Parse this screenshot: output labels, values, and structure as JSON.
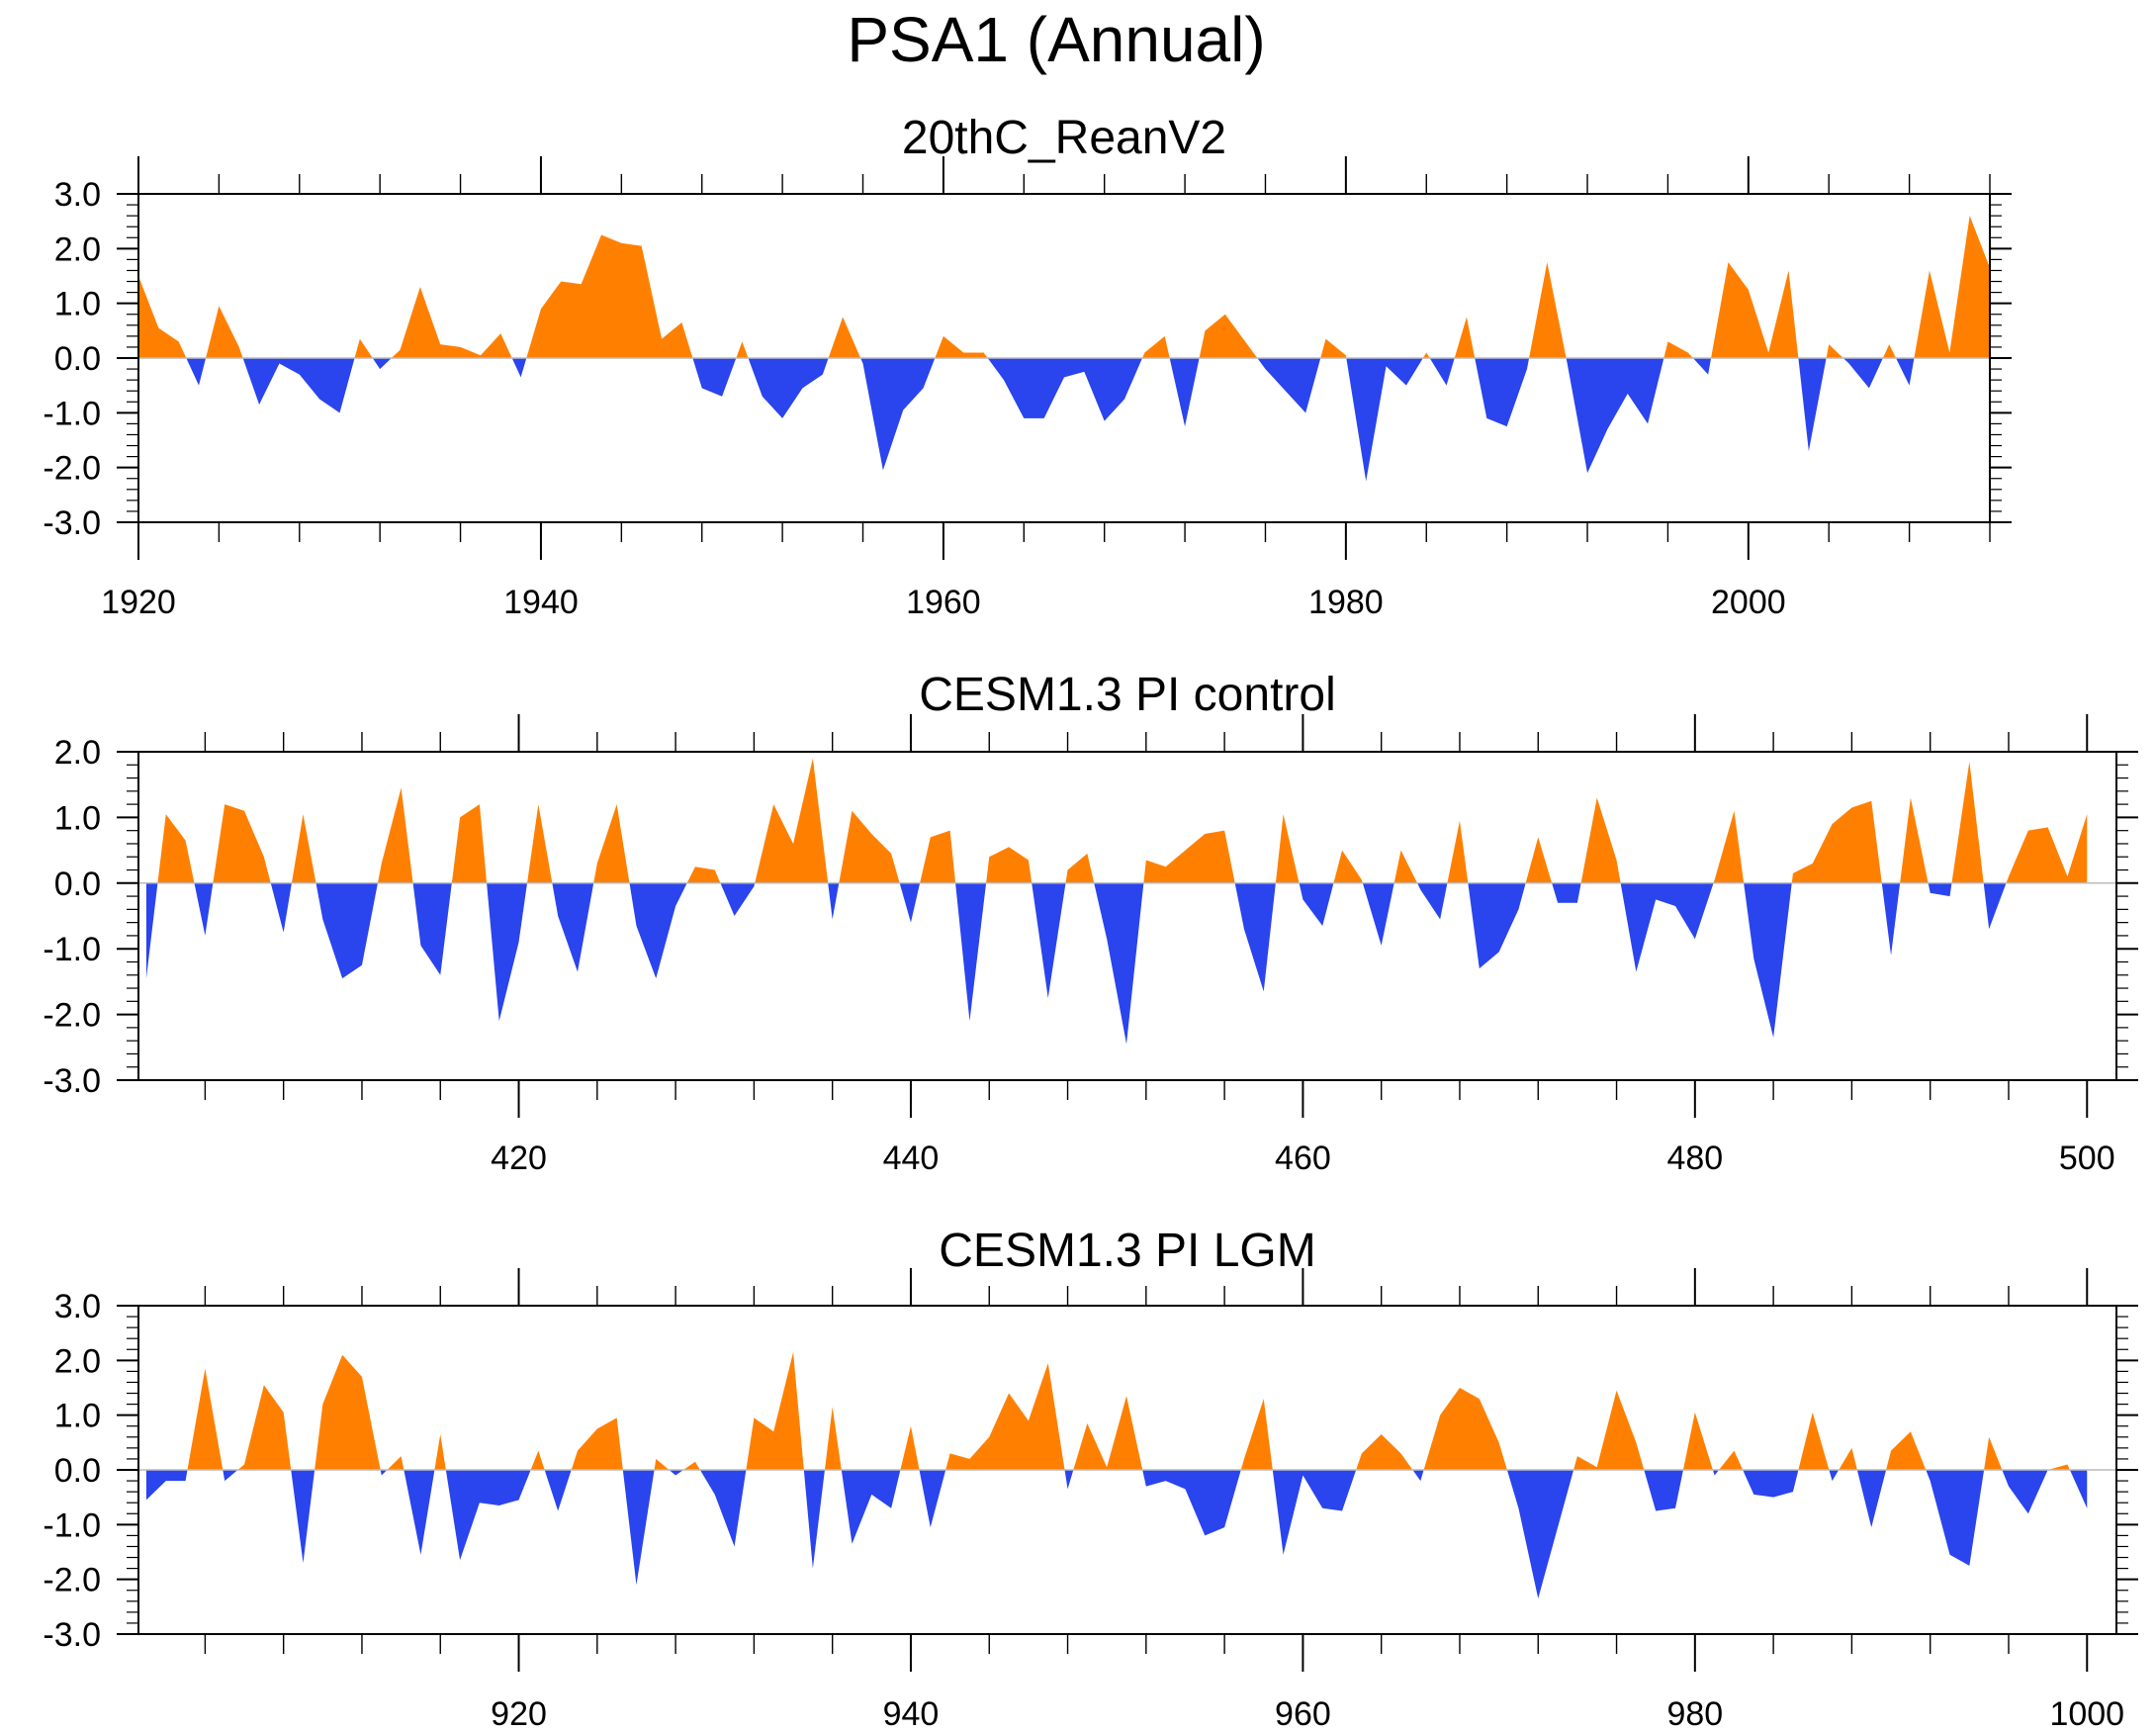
{
  "figure_title": "PSA1 (Annual)",
  "colors": {
    "positive": "#ff8000",
    "negative": "#2a44ee",
    "axis": "#000000"
  },
  "chart_data": [
    {
      "type": "area",
      "title": "20thC_ReanV2",
      "xlabel": "",
      "ylabel": "",
      "x_start": 1920,
      "x_step": 1,
      "xlim": [
        1920,
        2012
      ],
      "ylim": [
        -3,
        3
      ],
      "xticks": [
        1920,
        1940,
        1960,
        1980,
        2000
      ],
      "xtick_labels": [
        "1920",
        "1940",
        "1960",
        "1980",
        "2000"
      ],
      "yticks": [
        3.0,
        2.0,
        1.0,
        0.0,
        -1.0,
        -2.0,
        -3.0
      ],
      "ytick_labels": [
        "3.0",
        "2.0",
        "1.0",
        "0.0",
        "-1.0",
        "-2.0",
        "-3.0"
      ],
      "values": [
        1.5,
        0.55,
        0.3,
        -0.5,
        0.95,
        0.2,
        -0.85,
        -0.1,
        -0.3,
        -0.75,
        -1.0,
        0.35,
        -0.2,
        0.15,
        1.3,
        0.25,
        0.2,
        0.05,
        0.45,
        -0.35,
        0.9,
        1.4,
        1.35,
        2.25,
        2.1,
        2.05,
        0.35,
        0.65,
        -0.55,
        -0.7,
        0.3,
        -0.7,
        -1.1,
        -0.55,
        -0.3,
        0.75,
        -0.1,
        -2.05,
        -0.95,
        -0.55,
        0.4,
        0.1,
        0.1,
        -0.4,
        -1.1,
        -1.1,
        -0.35,
        -0.25,
        -1.15,
        -0.75,
        0.1,
        0.4,
        -1.25,
        0.5,
        0.8,
        0.3,
        -0.2,
        -0.6,
        -1.0,
        0.35,
        0.05,
        -2.25,
        -0.15,
        -0.5,
        0.1,
        -0.5,
        0.75,
        -1.1,
        -1.25,
        -0.2,
        1.75,
        -0.1,
        -2.1,
        -1.3,
        -0.65,
        -1.2,
        0.3,
        0.1,
        -0.3,
        1.75,
        1.25,
        0.1,
        1.6,
        -1.7,
        0.25,
        -0.1,
        -0.55,
        0.25,
        -0.5,
        1.6,
        0.1,
        2.6,
        1.65
      ]
    },
    {
      "type": "area",
      "title": "CESM1.3 PI control",
      "xlabel": "",
      "ylabel": "",
      "x_start": 401,
      "x_step": 1,
      "xlim": [
        400.6,
        501.5
      ],
      "ylim": [
        -3,
        2
      ],
      "xticks": [
        420,
        440,
        460,
        480,
        500
      ],
      "xtick_labels": [
        "420",
        "440",
        "460",
        "480",
        "500"
      ],
      "yticks": [
        2.0,
        1.0,
        0.0,
        -1.0,
        -2.0,
        -3.0
      ],
      "ytick_labels": [
        "2.0",
        "1.0",
        "0.0",
        "-1.0",
        "-2.0",
        "-3.0"
      ],
      "values": [
        -1.45,
        1.05,
        0.65,
        -0.8,
        1.2,
        1.1,
        0.4,
        -0.75,
        1.05,
        -0.55,
        -1.45,
        -1.25,
        0.3,
        1.45,
        -0.95,
        -1.4,
        1.0,
        1.2,
        -2.1,
        -0.9,
        1.2,
        -0.5,
        -1.35,
        0.3,
        1.2,
        -0.65,
        -1.45,
        -0.35,
        0.25,
        0.2,
        -0.5,
        -0.05,
        1.2,
        0.6,
        1.9,
        -0.55,
        1.1,
        0.75,
        0.45,
        -0.6,
        0.7,
        0.8,
        -2.1,
        0.4,
        0.55,
        0.35,
        -1.75,
        0.2,
        0.45,
        -0.85,
        -2.45,
        0.35,
        0.25,
        0.5,
        0.75,
        0.8,
        -0.7,
        -1.65,
        1.05,
        -0.25,
        -0.65,
        0.5,
        0.05,
        -0.95,
        0.5,
        -0.1,
        -0.55,
        0.95,
        -1.3,
        -1.05,
        -0.4,
        0.7,
        -0.3,
        -0.3,
        1.3,
        0.35,
        -1.35,
        -0.25,
        -0.35,
        -0.85,
        0.05,
        1.1,
        -1.15,
        -2.35,
        0.15,
        0.3,
        0.9,
        1.15,
        1.25,
        -1.1,
        1.3,
        -0.15,
        -0.2,
        1.85,
        -0.7,
        0.1,
        0.8,
        0.85,
        0.1,
        1.05
      ]
    },
    {
      "type": "area",
      "title": "CESM1.3 PI LGM",
      "xlabel": "",
      "ylabel": "",
      "x_start": 901,
      "x_step": 1,
      "xlim": [
        900.6,
        1001.5
      ],
      "ylim": [
        -3,
        3
      ],
      "xticks": [
        920,
        940,
        960,
        980,
        1000
      ],
      "xtick_labels": [
        "920",
        "940",
        "960",
        "980",
        "1000"
      ],
      "yticks": [
        3.0,
        2.0,
        1.0,
        0.0,
        -1.0,
        -2.0,
        -3.0
      ],
      "ytick_labels": [
        "3.0",
        "2.0",
        "1.0",
        "0.0",
        "-1.0",
        "-2.0",
        "-3.0"
      ],
      "values": [
        -0.55,
        -0.2,
        -0.2,
        1.85,
        -0.2,
        0.1,
        1.55,
        1.05,
        -1.7,
        1.2,
        2.1,
        1.7,
        -0.1,
        0.25,
        -1.55,
        0.65,
        -1.65,
        -0.6,
        -0.65,
        -0.55,
        0.35,
        -0.75,
        0.35,
        0.75,
        0.95,
        -2.1,
        0.2,
        -0.1,
        0.15,
        -0.45,
        -1.4,
        0.95,
        0.7,
        2.15,
        -1.8,
        1.15,
        -1.35,
        -0.45,
        -0.7,
        0.8,
        -1.05,
        0.3,
        0.2,
        0.6,
        1.4,
        0.9,
        1.95,
        -0.35,
        0.85,
        0.05,
        1.35,
        -0.3,
        -0.2,
        -0.35,
        -1.2,
        -1.05,
        0.2,
        1.3,
        -1.55,
        -0.1,
        -0.7,
        -0.75,
        0.3,
        0.65,
        0.3,
        -0.2,
        1.0,
        1.5,
        1.3,
        0.5,
        -0.7,
        -2.35,
        -1.05,
        0.25,
        0.05,
        1.45,
        0.5,
        -0.75,
        -0.7,
        1.05,
        -0.1,
        0.35,
        -0.45,
        -0.5,
        -0.4,
        1.05,
        -0.2,
        0.4,
        -1.05,
        0.35,
        0.7,
        -0.2,
        -1.55,
        -1.75,
        0.6,
        -0.3,
        -0.8,
        0.0,
        0.1,
        -0.7
      ]
    }
  ]
}
